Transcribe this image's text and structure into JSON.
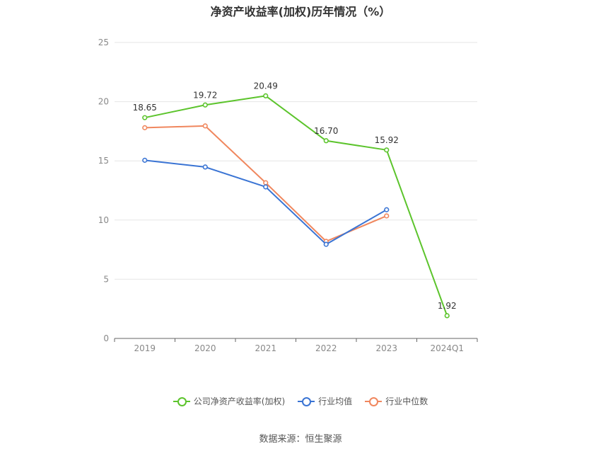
{
  "chart_data": {
    "type": "line",
    "title": "净资产收益率(加权)历年情况（%）",
    "categories": [
      "2019",
      "2020",
      "2021",
      "2022",
      "2023",
      "2024Q1"
    ],
    "ylim": [
      0,
      25
    ],
    "yticks": [
      0,
      5,
      10,
      15,
      20,
      25
    ],
    "grid": true,
    "legend_position": "bottom",
    "series": [
      {
        "name": "公司净资产收益率(加权)",
        "color": "#5cc42c",
        "values": [
          18.65,
          19.72,
          20.49,
          16.7,
          15.92,
          1.92
        ],
        "labels": [
          "18.65",
          "19.72",
          "20.49",
          "16.70",
          "15.92",
          "1.92"
        ]
      },
      {
        "name": "行业均值",
        "color": "#3a74d4",
        "values": [
          15.05,
          14.48,
          12.8,
          7.95,
          10.87,
          null
        ]
      },
      {
        "name": "行业中位数",
        "color": "#f0875e",
        "values": [
          17.8,
          17.95,
          13.15,
          8.2,
          10.35,
          null
        ]
      }
    ]
  },
  "source": "数据来源：恒生聚源"
}
